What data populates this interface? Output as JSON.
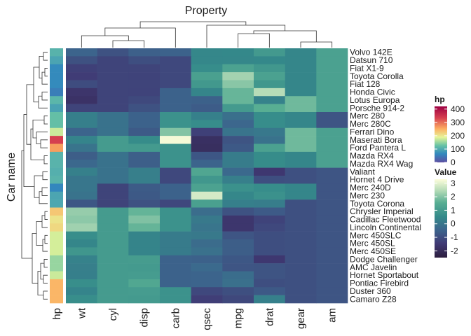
{
  "chart_data": {
    "type": "heatmap",
    "title": "Property",
    "ylabel": "Car name",
    "rows": [
      "Volvo 142E",
      "Datsun 710",
      "Fiat X1-9",
      "Toyota Corolla",
      "Fiat 128",
      "Honda Civic",
      "Lotus Europa",
      "Porsche 914-2",
      "Merc 280",
      "Merc 280C",
      "Ferrari Dino",
      "Maserati Bora",
      "Ford Pantera L",
      "Mazda RX4",
      "Mazda RX4 Wag",
      "Valiant",
      "Hornet 4 Drive",
      "Merc 240D",
      "Merc 230",
      "Toyota Corona",
      "Chrysler Imperial",
      "Cadillac Fleetwood",
      "Lincoln Continental",
      "Merc 450SLC",
      "Merc 450SL",
      "Merc 450SE",
      "Dodge Challenger",
      "AMC Javelin",
      "Hornet Sportabout",
      "Pontiac Firebird",
      "Duster 360",
      "Camaro Z28"
    ],
    "columns": [
      "wt",
      "cyl",
      "disp",
      "carb",
      "qsec",
      "mpg",
      "drat",
      "gear",
      "am"
    ],
    "annotation": {
      "name": "hp",
      "legend_title": "hp",
      "legend_ticks": [
        "400",
        "300",
        "200",
        "100",
        "0"
      ],
      "values": [
        109,
        93,
        66,
        65,
        66,
        52,
        113,
        91,
        123,
        123,
        175,
        335,
        264,
        110,
        110,
        105,
        110,
        62,
        95,
        97,
        230,
        205,
        215,
        180,
        180,
        180,
        150,
        150,
        175,
        245,
        245,
        245
      ]
    },
    "legend": {
      "title": "Value",
      "ticks": [
        "3",
        "2",
        "1",
        "0",
        "-1",
        "-2"
      ],
      "range": [
        -2.5,
        3.3
      ]
    },
    "values": [
      [
        -0.45,
        -0.88,
        -0.56,
        -0.5,
        0.43,
        0.47,
        0.96,
        0.42,
        1.19
      ],
      [
        -0.92,
        -1.22,
        -0.99,
        -1.12,
        0.43,
        0.45,
        0.47,
        0.42,
        1.19
      ],
      [
        -1.31,
        -1.22,
        -1.22,
        -1.12,
        0.59,
        1.2,
        0.9,
        0.42,
        1.19
      ],
      [
        -1.41,
        -1.22,
        -1.25,
        -1.12,
        1.15,
        2.29,
        1.17,
        0.42,
        1.19
      ],
      [
        -1.04,
        -1.22,
        -1.23,
        -1.12,
        0.91,
        2.04,
        0.9,
        0.42,
        1.19
      ],
      [
        -1.64,
        -1.22,
        -1.25,
        -0.5,
        0.38,
        1.71,
        2.49,
        0.42,
        1.19
      ],
      [
        -1.74,
        -1.22,
        -1.09,
        -0.5,
        -0.53,
        1.71,
        0.32,
        1.78,
        1.19
      ],
      [
        -1.23,
        -1.22,
        -0.89,
        -0.5,
        -0.64,
        0.98,
        1.56,
        1.78,
        1.19
      ],
      [
        0.23,
        -0.11,
        -0.51,
        0.74,
        0.25,
        -0.15,
        0.61,
        0.42,
        -0.81
      ],
      [
        0.23,
        -0.11,
        -0.51,
        0.74,
        0.59,
        -0.38,
        0.61,
        0.42,
        -0.81
      ],
      [
        -0.45,
        -0.11,
        -0.69,
        1.98,
        -1.31,
        -0.06,
        0.05,
        1.78,
        1.19
      ],
      [
        0.36,
        1.01,
        0.57,
        3.21,
        -1.82,
        -0.84,
        -0.11,
        1.78,
        1.19
      ],
      [
        -0.05,
        1.01,
        0.97,
        0.74,
        -1.87,
        -0.71,
        1.17,
        1.78,
        1.19
      ],
      [
        -0.61,
        -0.11,
        -0.57,
        0.74,
        -0.78,
        0.15,
        0.57,
        0.42,
        1.19
      ],
      [
        -0.35,
        -0.11,
        -0.57,
        0.74,
        -0.46,
        0.15,
        0.57,
        0.42,
        1.19
      ],
      [
        0.25,
        -0.11,
        0.22,
        -1.12,
        1.33,
        -0.33,
        -1.56,
        -0.93,
        -0.81
      ],
      [
        -0.0,
        -0.11,
        0.22,
        -1.12,
        0.89,
        0.22,
        -0.97,
        -0.93,
        -0.81
      ],
      [
        -0.0,
        -1.22,
        -0.68,
        -0.5,
        1.2,
        0.72,
        0.61,
        0.42,
        -0.81
      ],
      [
        -0.07,
        -1.22,
        -0.73,
        -0.5,
        2.83,
        0.45,
        0.71,
        0.42,
        -0.81
      ],
      [
        -0.77,
        -1.22,
        -0.89,
        -1.12,
        1.15,
        0.23,
        0.19,
        -0.93,
        -0.81
      ],
      [
        2.17,
        1.01,
        1.68,
        0.74,
        -0.24,
        -0.89,
        -0.69,
        -0.93,
        -0.81
      ],
      [
        2.08,
        1.01,
        1.95,
        0.74,
        0.07,
        -1.61,
        -1.25,
        -0.93,
        -0.81
      ],
      [
        2.26,
        1.01,
        1.69,
        0.74,
        -0.02,
        -1.61,
        -1.12,
        -0.93,
        -0.81
      ],
      [
        0.64,
        1.01,
        0.37,
        0.12,
        0.08,
        -0.81,
        -0.98,
        -0.93,
        -0.81
      ],
      [
        0.42,
        1.01,
        0.37,
        0.12,
        -0.25,
        -0.61,
        -0.98,
        -0.93,
        -0.81
      ],
      [
        0.87,
        1.01,
        0.37,
        0.12,
        -0.14,
        -0.61,
        -0.98,
        -0.93,
        -0.81
      ],
      [
        0.31,
        1.01,
        1.03,
        -0.5,
        -0.54,
        -0.76,
        -1.56,
        -0.93,
        -0.81
      ],
      [
        0.22,
        1.01,
        0.97,
        -0.5,
        -0.31,
        -0.81,
        -0.84,
        -0.93,
        -0.81
      ],
      [
        0.23,
        1.01,
        1.04,
        -0.5,
        -0.46,
        -0.23,
        -0.84,
        -0.93,
        -0.81
      ],
      [
        0.64,
        1.01,
        1.37,
        -0.5,
        -0.45,
        -0.15,
        -0.97,
        -0.93,
        -0.81
      ],
      [
        0.36,
        1.01,
        1.04,
        0.74,
        -1.12,
        -0.96,
        -0.72,
        -0.93,
        -0.81
      ],
      [
        0.64,
        1.01,
        0.97,
        0.74,
        -1.37,
        -1.13,
        0.25,
        -0.93,
        -0.81
      ]
    ]
  }
}
